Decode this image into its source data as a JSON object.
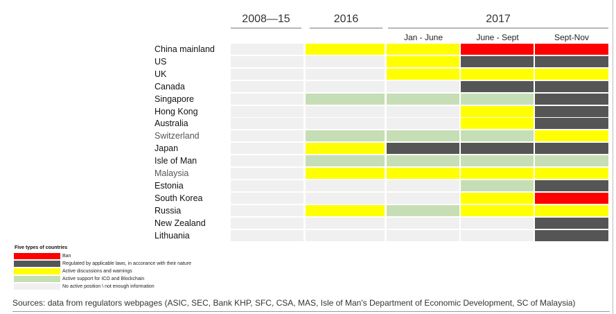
{
  "chart_data": {
    "type": "table",
    "title": "",
    "period_headers": [
      "2008—15",
      "2016",
      "2017"
    ],
    "subperiods_2017": [
      "Jan - June",
      "June - Sept",
      "Sept-Nov"
    ],
    "columns": [
      "2008—15",
      "2016",
      "Jan - June",
      "June - Sept",
      "Sept-Nov"
    ],
    "legend_title": "Five types of  countries",
    "categories": {
      "R": {
        "label": "Ban",
        "color": "#ff0000"
      },
      "D": {
        "label": "Regulated by applicable laws, in accorance with their nature",
        "color": "#555555"
      },
      "Y": {
        "label": "Active discussions and warnings",
        "color": "#ffff00"
      },
      "G": {
        "label": "Active support for ICO and Blockchain",
        "color": "#c6deb5"
      },
      "N": {
        "label": "No active position \\ not enough information",
        "color": "#f0f0f0"
      }
    },
    "legend_order": [
      "R",
      "D",
      "Y",
      "G",
      "N"
    ],
    "rows": [
      {
        "country": "China mainland",
        "values": [
          "N",
          "Y",
          "Y",
          "R",
          "R"
        ]
      },
      {
        "country": "US",
        "values": [
          "N",
          "N",
          "Y",
          "D",
          "D"
        ]
      },
      {
        "country": "UK",
        "values": [
          "N",
          "N",
          "Y",
          "Y",
          "Y"
        ]
      },
      {
        "country": "Canada",
        "values": [
          "N",
          "N",
          "N",
          "D",
          "D"
        ]
      },
      {
        "country": "Singapore",
        "values": [
          "N",
          "G",
          "G",
          "G",
          "D"
        ]
      },
      {
        "country": "Hong Kong",
        "values": [
          "N",
          "N",
          "N",
          "Y",
          "D"
        ]
      },
      {
        "country": "Australia",
        "values": [
          "N",
          "N",
          "N",
          "Y",
          "D"
        ]
      },
      {
        "country": "Switzerland",
        "values": [
          "N",
          "G",
          "G",
          "G",
          "Y"
        ]
      },
      {
        "country": "Japan",
        "values": [
          "N",
          "Y",
          "D",
          "D",
          "D"
        ]
      },
      {
        "country": "Isle of Man",
        "values": [
          "N",
          "G",
          "G",
          "G",
          "G"
        ]
      },
      {
        "country": "Malaysia",
        "values": [
          "N",
          "Y",
          "Y",
          "Y",
          "Y"
        ]
      },
      {
        "country": "Estonia",
        "values": [
          "N",
          "N",
          "N",
          "G",
          "D"
        ]
      },
      {
        "country": "South Korea",
        "values": [
          "N",
          "N",
          "N",
          "Y",
          "R"
        ]
      },
      {
        "country": "Russia",
        "values": [
          "N",
          "Y",
          "G",
          "Y",
          "Y"
        ]
      },
      {
        "country": "New Zealand",
        "values": [
          "N",
          "N",
          "N",
          "N",
          "D"
        ]
      },
      {
        "country": "Lithuania",
        "values": [
          "N",
          "N",
          "N",
          "N",
          "D"
        ]
      }
    ]
  },
  "source": "Sources: data from regulators webpages (ASIC, SEC, Bank KHP, SFC, CSA, MAS, Isle of Man's Department of Economic Development, SC of Malaysia)"
}
